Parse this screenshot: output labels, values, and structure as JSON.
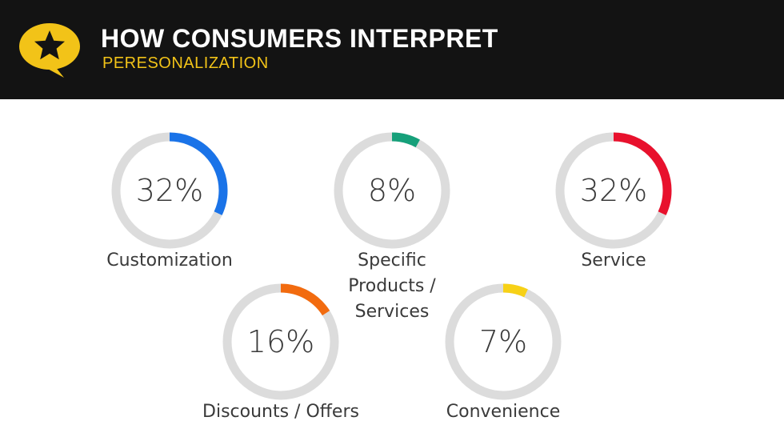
{
  "header": {
    "title": "HOW CONSUMERS INTERPRET",
    "subtitle": "PERESONALIZATION",
    "logo_icon": "star-speech-bubble-icon"
  },
  "colors": {
    "track": "#dcdcdc",
    "header_bg": "#131313",
    "accent": "#f2c318"
  },
  "chart_data": {
    "type": "donut",
    "title": "HOW CONSUMERS INTERPRET",
    "subtitle": "PERESONALIZATION",
    "series": [
      {
        "label": "Customization",
        "value": 32,
        "display": "32%",
        "color": "#1a73e8"
      },
      {
        "label": "Specific Products / Services",
        "value": 8,
        "display": "8%",
        "color": "#16a07a"
      },
      {
        "label": "Service",
        "value": 32,
        "display": "32%",
        "color": "#e8112d"
      },
      {
        "label": "Discounts / Offers",
        "value": 16,
        "display": "16%",
        "color": "#f26b0f"
      },
      {
        "label": "Convenience",
        "value": 7,
        "display": "7%",
        "color": "#f7d117"
      }
    ]
  }
}
